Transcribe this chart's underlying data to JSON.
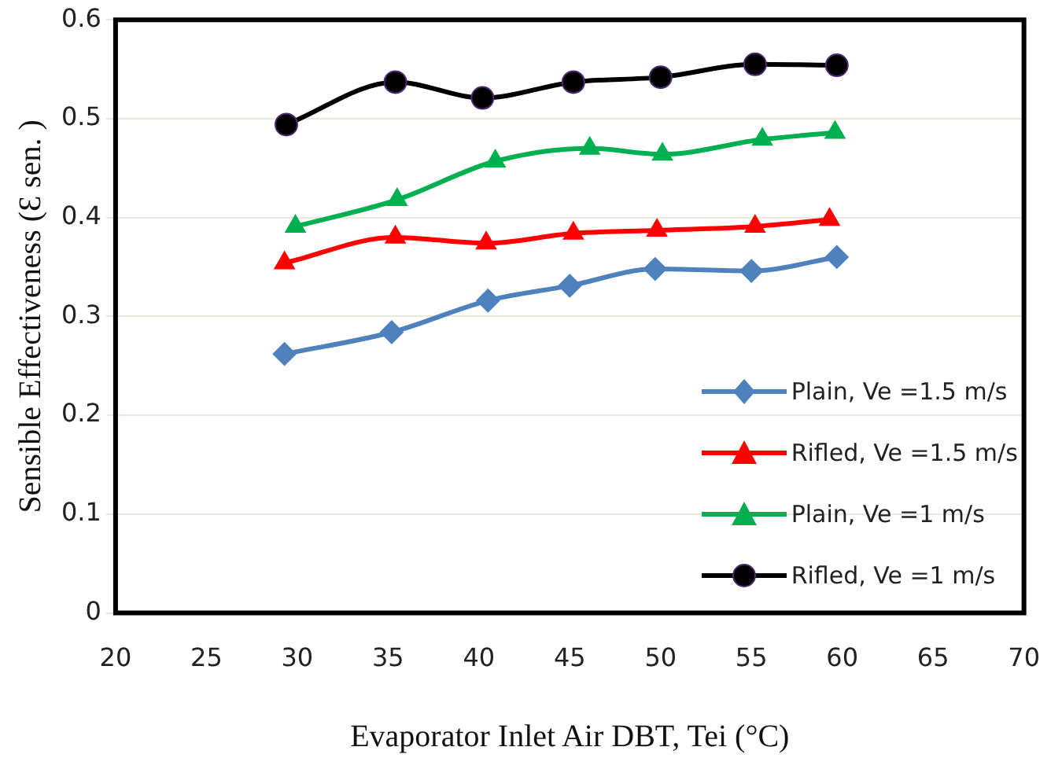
{
  "chart_data": {
    "type": "line",
    "xlabel": "Evaporator Inlet Air DBT, Tei (°C)",
    "ylabel": "Sensible Effectiveness (Ɛ sen. )",
    "xlim": [
      20,
      70
    ],
    "xticks": [
      20,
      25,
      30,
      35,
      40,
      45,
      50,
      55,
      60,
      65,
      70
    ],
    "ylim": [
      0,
      0.6
    ],
    "yticks": [
      0,
      0.1,
      0.2,
      0.3,
      0.4,
      0.5,
      0.6
    ],
    "grid": "y",
    "legend": "bottom right",
    "series": [
      {
        "name": "Plain, Ve =1.5  m/s",
        "color": "#4f81bd",
        "marker": "diamond",
        "x": [
          29.3,
          35.2,
          40.5,
          45,
          49.7,
          55,
          59.7
        ],
        "values": [
          0.262,
          0.284,
          0.316,
          0.331,
          0.348,
          0.346,
          0.36
        ]
      },
      {
        "name": "Rifled, Ve =1.5  m/s",
        "color": "#ff0000",
        "marker": "triangle",
        "x": [
          29.3,
          35.4,
          40.4,
          45.2,
          49.8,
          55.2,
          59.3
        ],
        "values": [
          0.354,
          0.38,
          0.374,
          0.384,
          0.387,
          0.391,
          0.398
        ]
      },
      {
        "name": "Plain, Ve =1 m/s",
        "color": "#00b050",
        "marker": "triangle",
        "x": [
          29.9,
          35.5,
          40.9,
          46.1,
          50.1,
          55.6,
          59.6
        ],
        "values": [
          0.391,
          0.418,
          0.457,
          0.47,
          0.464,
          0.479,
          0.486
        ]
      },
      {
        "name": "Rifled, Ve =1  m/s",
        "color": "#000000",
        "marker": "circle",
        "x": [
          29.4,
          35.4,
          40.2,
          45.2,
          50,
          55.2,
          59.7
        ],
        "values": [
          0.494,
          0.537,
          0.521,
          0.537,
          0.542,
          0.555,
          0.554
        ]
      }
    ]
  }
}
